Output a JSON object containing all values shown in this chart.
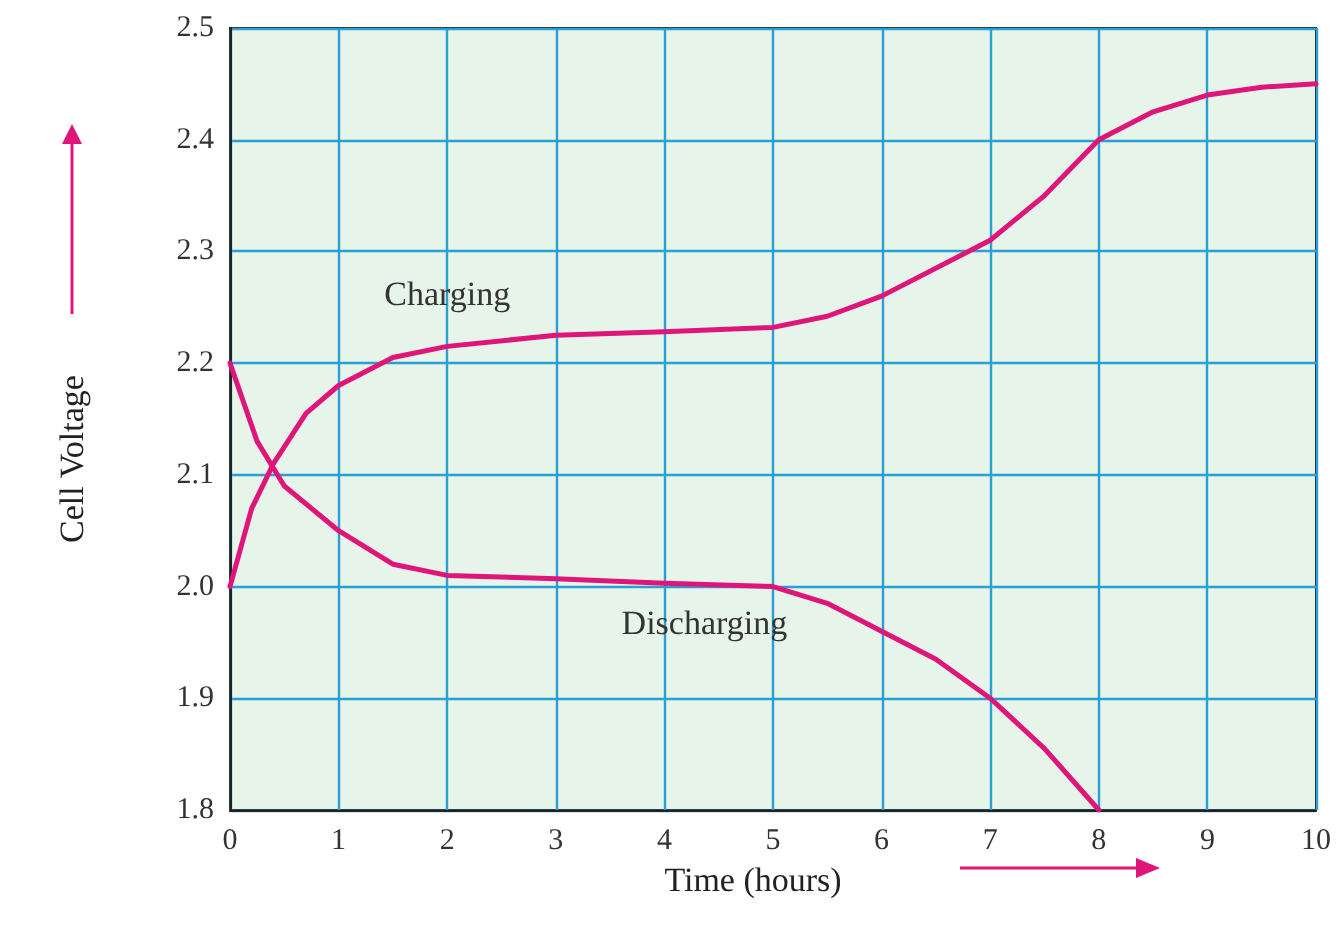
{
  "chart_data": {
    "type": "line",
    "xlabel": "Time (hours)",
    "ylabel": "Cell Voltage",
    "xlim": [
      0,
      10
    ],
    "ylim": [
      1.8,
      2.5
    ],
    "xticks": [
      0,
      1,
      2,
      3,
      4,
      5,
      6,
      7,
      8,
      9,
      10
    ],
    "yticks": [
      1.8,
      1.9,
      {
        "value": 2,
        "label": "2.0"
      },
      2.1,
      2.2,
      2.3,
      2.4,
      2.5
    ],
    "grid": true,
    "marker": "none",
    "line_style": "solid",
    "series": [
      {
        "name": "Charging",
        "color": "#e0157a",
        "x": [
          0,
          0.2,
          0.4,
          0.7,
          1,
          1.5,
          2,
          3,
          4,
          5,
          5.5,
          6,
          7,
          7.5,
          8,
          8.5,
          9,
          9.5,
          10
        ],
        "values": [
          2.0,
          2.07,
          2.11,
          2.155,
          2.18,
          2.205,
          2.215,
          2.225,
          2.228,
          2.232,
          2.242,
          2.26,
          2.31,
          2.35,
          2.4,
          2.425,
          2.44,
          2.447,
          2.45
        ]
      },
      {
        "name": "Discharging",
        "color": "#e0157a",
        "x": [
          0,
          0.25,
          0.5,
          1,
          1.5,
          2,
          3,
          4,
          5,
          5.5,
          6,
          6.5,
          7,
          7.5,
          8
        ],
        "values": [
          2.2,
          2.13,
          2.09,
          2.05,
          2.02,
          2.01,
          2.007,
          2.003,
          2.0,
          1.985,
          1.96,
          1.935,
          1.9,
          1.855,
          1.8
        ]
      }
    ]
  }
}
